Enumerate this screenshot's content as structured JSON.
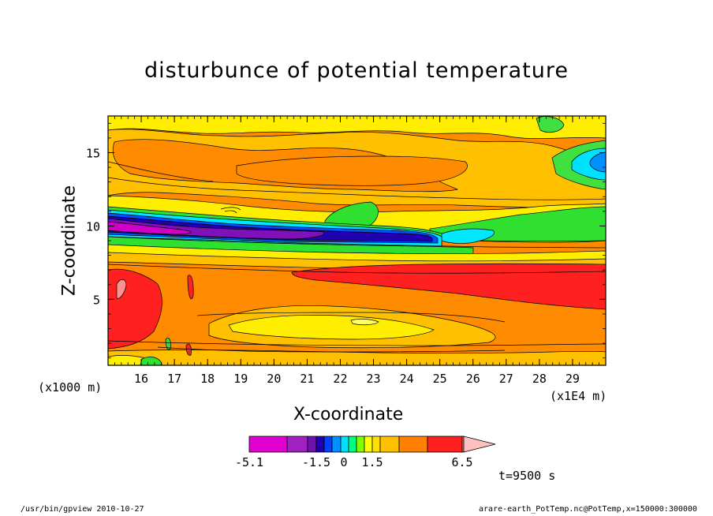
{
  "chart_data": {
    "type": "heatmap",
    "title": "disturbunce of potential temperature",
    "xlabel": "X-coordinate",
    "ylabel": "Z-coordinate",
    "x_unit_left": "(x1000 m)",
    "x_unit_right": "(x1E4 m)",
    "x_ticks": [
      "16",
      "17",
      "18",
      "19",
      "20",
      "21",
      "22",
      "23",
      "24",
      "25",
      "26",
      "27",
      "28",
      "29"
    ],
    "x_tick_values": [
      16,
      17,
      18,
      19,
      20,
      21,
      22,
      23,
      24,
      25,
      26,
      27,
      28,
      29
    ],
    "xlim": [
      15,
      30
    ],
    "y_ticks": [
      "5",
      "10",
      "15"
    ],
    "y_tick_values": [
      5,
      10,
      15
    ],
    "ylim": [
      0.5,
      17.5
    ],
    "colorbar": {
      "labels": [
        "-5.1",
        "-1.5",
        "0",
        "1.5",
        "6.5"
      ],
      "label_values": [
        -5.1,
        -1.5,
        0,
        1.5,
        6.5
      ],
      "colors": [
        "#e000d0",
        "#a020c0",
        "#7010b0",
        "#2000b0",
        "#0040ff",
        "#0090ff",
        "#00e0ff",
        "#00ff80",
        "#80ff00",
        "#ffff00",
        "#ffe000",
        "#ffc000",
        "#ff8000",
        "#ff2020",
        "#ff8080",
        "#ffc0c0"
      ]
    },
    "time_label": "t=9500 s"
  },
  "footer": {
    "left": "/usr/bin/gpview   2010-10-27",
    "right": "arare-earth_PotTemp.nc@PotTemp,x=150000:300000"
  }
}
